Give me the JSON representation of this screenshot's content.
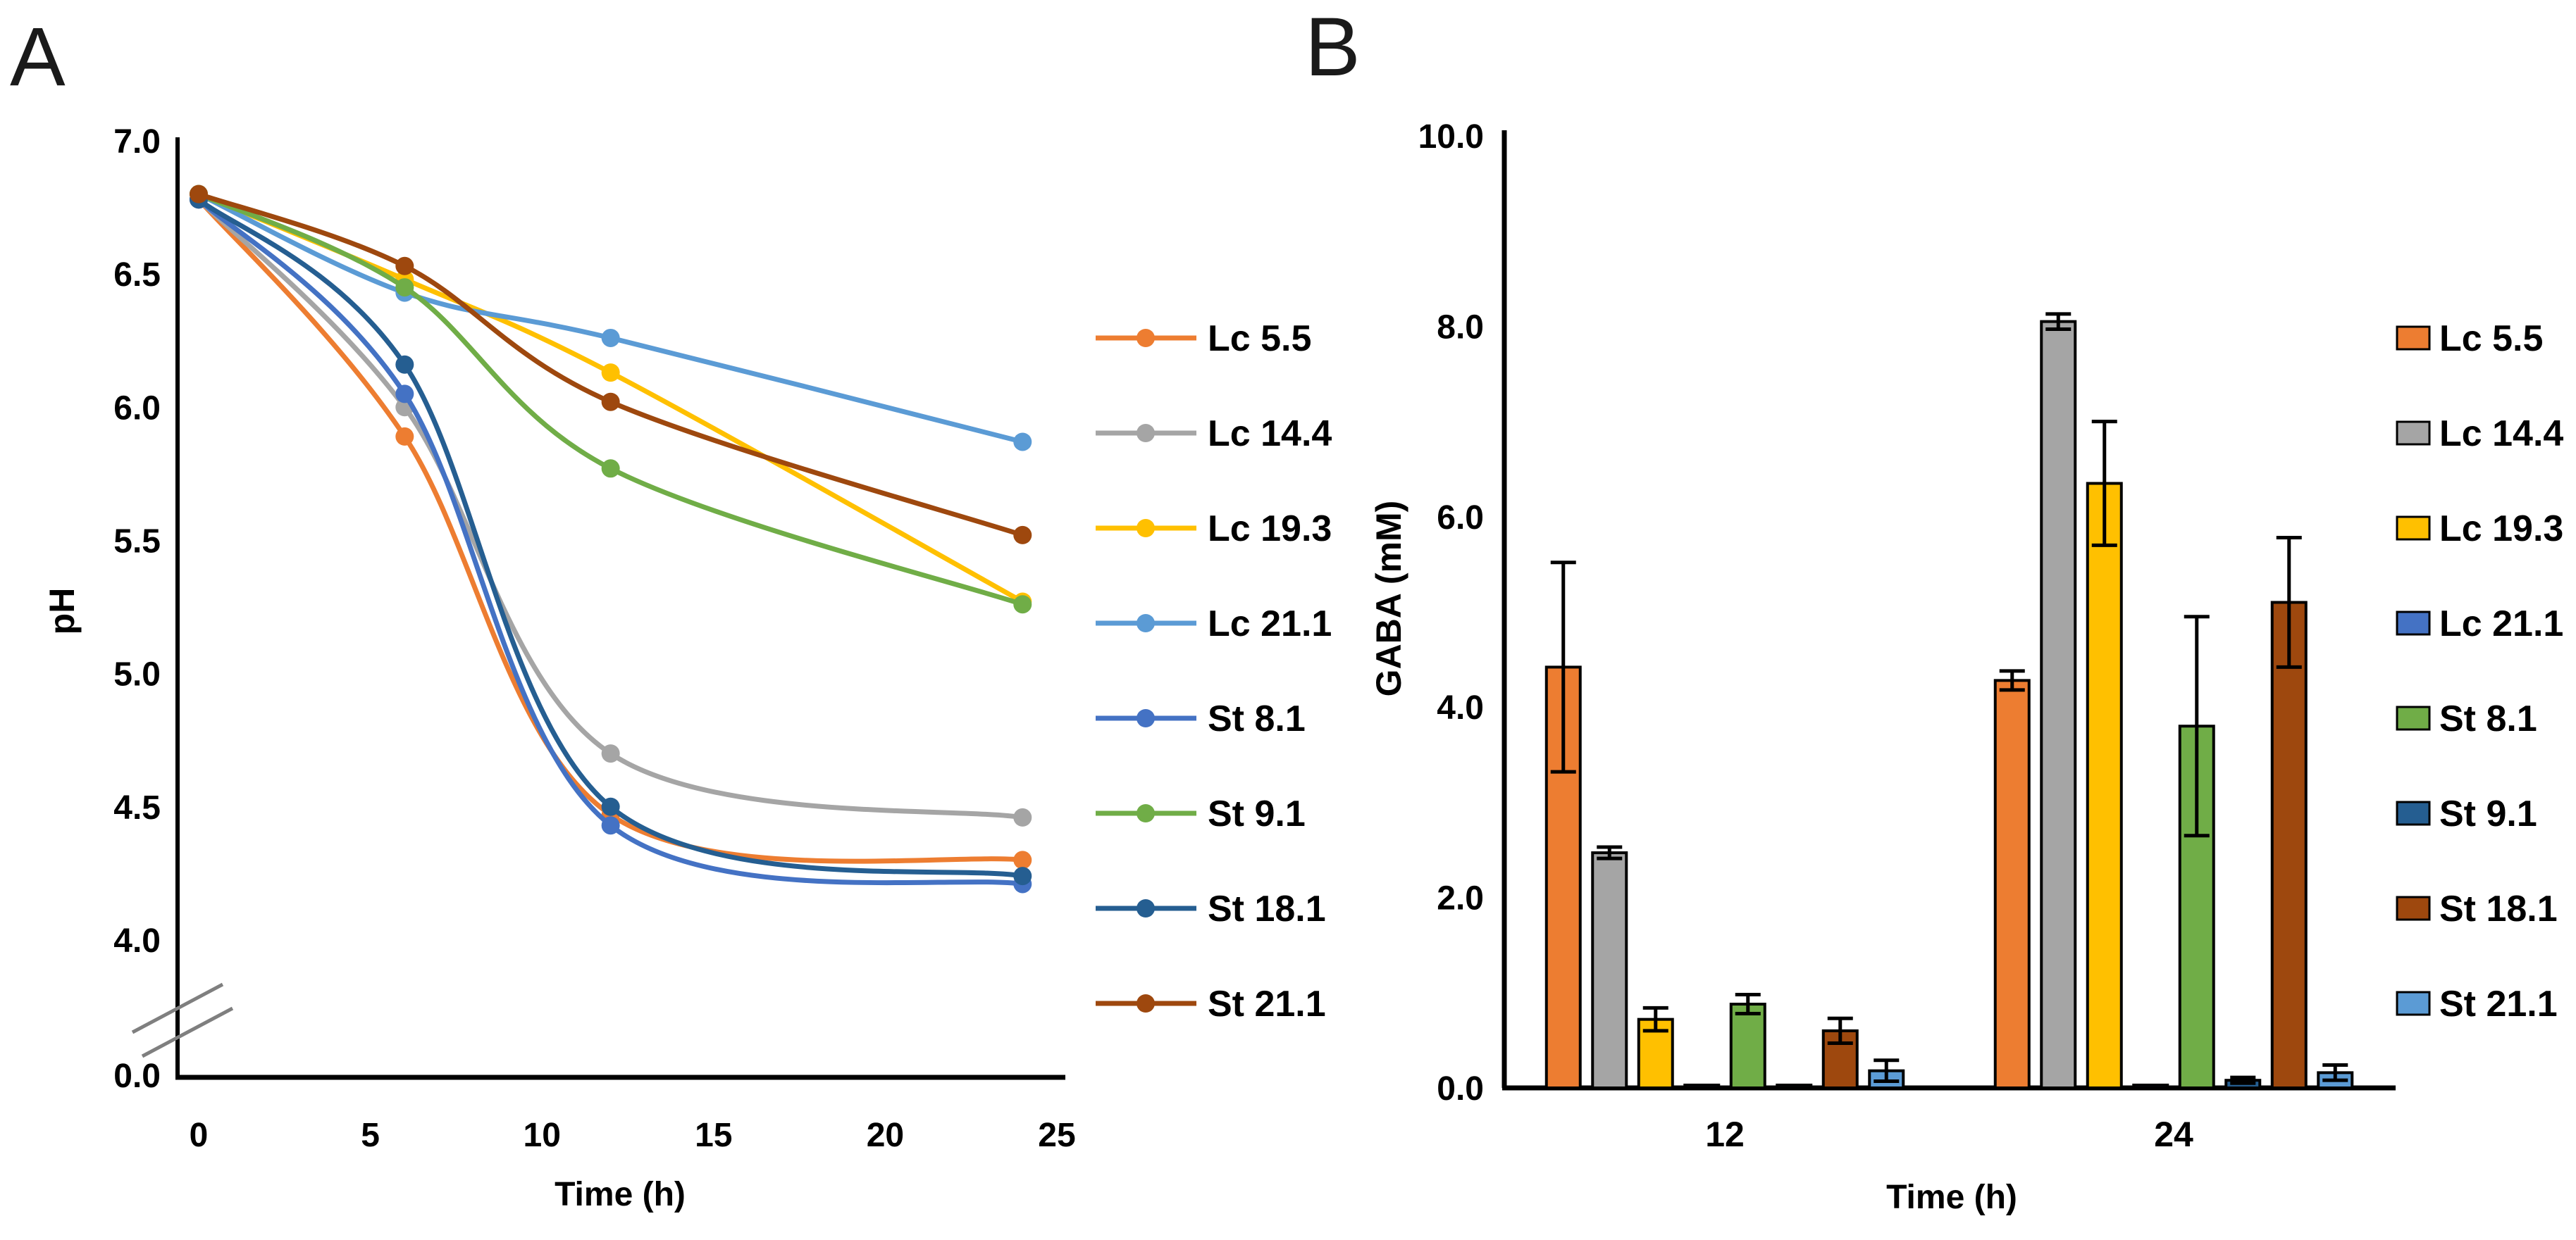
{
  "figure": {
    "panel_a_label": "A",
    "panel_b_label": "B"
  },
  "colors": {
    "black_axis": "#000000",
    "break_mark_gray": "#7f7f7f",
    "orange": "#ED7D31",
    "gray": "#A5A5A5",
    "gold": "#FFC000",
    "light_blue": "#5B9BD5",
    "blue": "#4472C4",
    "green": "#70AD47",
    "steel_dark_blue": "#255E91",
    "brown": "#9E480E"
  },
  "chart_data": [
    {
      "id": "panel-a",
      "type": "line",
      "title": "",
      "xlabel": "Time (h)",
      "ylabel": "pH",
      "x": [
        0,
        6,
        12,
        24
      ],
      "xticks": [
        0,
        5,
        10,
        15,
        20,
        25
      ],
      "xtick_labels": [
        "0",
        "5",
        "10",
        "15",
        "20",
        "25"
      ],
      "yticks": [
        7.0,
        6.5,
        6.0,
        5.5,
        5.0,
        4.5,
        4.0,
        0.0
      ],
      "ytick_labels": [
        "7.0",
        "6.5",
        "6.0",
        "5.5",
        "5.0",
        "4.5",
        "4.0",
        "0.0"
      ],
      "ylim_display": [
        4.0,
        7.0
      ],
      "xlim": [
        0,
        25
      ],
      "axis_break": true,
      "grid": false,
      "legend_position": "right",
      "series": [
        {
          "name": "Lc 5.5",
          "color": "#ED7D31",
          "values": [
            6.78,
            5.89,
            4.47,
            4.3
          ]
        },
        {
          "name": "Lc 14.4",
          "color": "#A5A5A5",
          "values": [
            6.78,
            6.0,
            4.7,
            4.46
          ]
        },
        {
          "name": "Lc 19.3",
          "color": "#FFC000",
          "values": [
            6.8,
            6.48,
            6.13,
            5.27
          ]
        },
        {
          "name": "Lc 21.1",
          "color": "#5B9BD5",
          "values": [
            6.8,
            6.43,
            6.26,
            5.87
          ]
        },
        {
          "name": "St 8.1",
          "color": "#4472C4",
          "values": [
            6.78,
            6.05,
            4.43,
            4.21
          ]
        },
        {
          "name": "St 9.1",
          "color": "#70AD47",
          "values": [
            6.8,
            6.45,
            5.77,
            5.26
          ]
        },
        {
          "name": "St 18.1",
          "color": "#255E91",
          "values": [
            6.78,
            6.16,
            4.5,
            4.24
          ]
        },
        {
          "name": "St 21.1",
          "color": "#9E480E",
          "values": [
            6.8,
            6.53,
            6.02,
            5.52
          ]
        }
      ]
    },
    {
      "id": "panel-b",
      "type": "bar",
      "title": "",
      "xlabel": "Time (h)",
      "ylabel": "GABA (mM)",
      "categories": [
        "12",
        "24"
      ],
      "yticks": [
        0,
        2,
        4,
        6,
        8,
        10
      ],
      "ytick_labels": [
        "0.0",
        "2.0",
        "4.0",
        "6.0",
        "8.0",
        "10.0"
      ],
      "ylim": [
        0,
        10
      ],
      "grid": false,
      "legend_position": "right",
      "error_bars": true,
      "series": [
        {
          "name": "Lc 5.5",
          "color": "#ED7D31",
          "values": [
            4.42,
            4.28
          ],
          "errors": [
            1.1,
            0.1
          ]
        },
        {
          "name": "Lc 14.4",
          "color": "#A5A5A5",
          "values": [
            2.47,
            8.05
          ],
          "errors": [
            0.06,
            0.08
          ]
        },
        {
          "name": "Lc 19.3",
          "color": "#FFC000",
          "values": [
            0.72,
            6.35
          ],
          "errors": [
            0.12,
            0.65
          ]
        },
        {
          "name": "Lc 21.1",
          "color": "#4472C4",
          "values": [
            0.03,
            0.03
          ],
          "errors": [
            0,
            0
          ]
        },
        {
          "name": "St 8.1",
          "color": "#70AD47",
          "values": [
            0.88,
            3.8
          ],
          "errors": [
            0.1,
            1.15
          ]
        },
        {
          "name": "St 9.1",
          "color": "#255E91",
          "values": [
            0.03,
            0.08
          ],
          "errors": [
            0,
            0.03
          ]
        },
        {
          "name": "St 18.1",
          "color": "#9E480E",
          "values": [
            0.6,
            5.1
          ],
          "errors": [
            0.13,
            0.68
          ]
        },
        {
          "name": "St 21.1",
          "color": "#5B9BD5",
          "values": [
            0.18,
            0.16
          ],
          "errors": [
            0.11,
            0.08
          ]
        }
      ]
    }
  ]
}
